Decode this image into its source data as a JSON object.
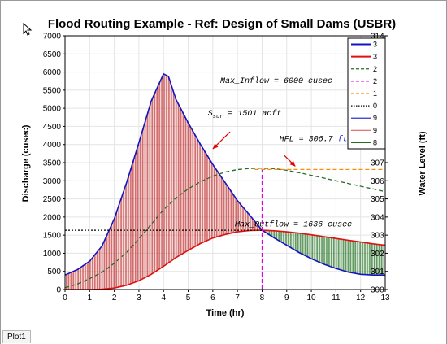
{
  "window": {
    "tab_label": "Plot1"
  },
  "chart_data": {
    "type": "line",
    "title": "Flood Routing Example - Ref: Design of Small Dams (USBR)",
    "xlabel": "Time (hr)",
    "ylabel": "Discharge (cusec)",
    "y2label": "Water Level (ft)",
    "xlim": [
      0,
      13
    ],
    "ylim": [
      0,
      7000
    ],
    "y2lim": [
      300,
      314
    ],
    "xticks": [
      0,
      1,
      2,
      3,
      4,
      5,
      6,
      7,
      8,
      9,
      10,
      11,
      12,
      13
    ],
    "yticks": [
      0,
      500,
      1000,
      1500,
      2000,
      2500,
      3000,
      3500,
      4000,
      4500,
      5000,
      5500,
      6000,
      6500,
      7000
    ],
    "y2ticks_shown": [
      "300",
      "301",
      "302",
      "303",
      "304",
      "305",
      "306",
      "307",
      "314"
    ],
    "grid": true,
    "series": [
      {
        "role": "inflow",
        "color": "#1515c0",
        "x": [
          0,
          0.5,
          1,
          1.5,
          2,
          2.5,
          3,
          3.5,
          4,
          4.2,
          4.5,
          5,
          5.5,
          6,
          6.5,
          7,
          7.5,
          8,
          8.5,
          9,
          9.5,
          10,
          10.5,
          11,
          11.5,
          12,
          12.5,
          13
        ],
        "y": [
          400,
          550,
          780,
          1200,
          1950,
          2950,
          4050,
          5200,
          5950,
          5880,
          5250,
          4600,
          4000,
          3450,
          2950,
          2450,
          2050,
          1636,
          1420,
          1220,
          1020,
          850,
          700,
          580,
          480,
          420,
          400,
          400
        ]
      },
      {
        "role": "outflow",
        "color": "#e01010",
        "x": [
          0,
          0.5,
          1,
          1.5,
          2,
          2.5,
          3,
          3.5,
          4,
          4.5,
          5,
          5.5,
          6,
          6.5,
          7,
          7.5,
          8,
          8.5,
          9,
          9.5,
          10,
          10.5,
          11,
          11.5,
          12,
          12.5,
          13
        ],
        "y": [
          0,
          0,
          0,
          10,
          40,
          120,
          240,
          420,
          640,
          880,
          1080,
          1270,
          1420,
          1520,
          1590,
          1628,
          1636,
          1620,
          1590,
          1555,
          1510,
          1460,
          1410,
          1360,
          1310,
          1260,
          1220
        ]
      },
      {
        "role": "water level",
        "axis": "y2",
        "color": "#2a6a2a",
        "dash": "dashed",
        "x": [
          0,
          0.5,
          1,
          1.5,
          2,
          2.5,
          3,
          3.5,
          4,
          4.5,
          5,
          5.5,
          6,
          6.5,
          7,
          7.5,
          8,
          8.5,
          9,
          9.5,
          10,
          10.5,
          11,
          11.5,
          12,
          12.5,
          13
        ],
        "y": [
          300.1,
          300.3,
          300.6,
          300.95,
          301.45,
          302.05,
          302.8,
          303.6,
          304.4,
          305.05,
          305.55,
          305.95,
          306.25,
          306.48,
          306.62,
          306.68,
          306.7,
          306.67,
          306.58,
          306.45,
          306.3,
          306.15,
          306.0,
          305.85,
          305.7,
          305.55,
          305.4
        ]
      },
      {
        "role": "peak outflow time marker",
        "color": "#e000e0",
        "dash": "dashed",
        "x": [
          8,
          8
        ],
        "y": [
          0,
          3312
        ]
      },
      {
        "role": "HFL level",
        "color": "#ff8c00",
        "dash": "dashed",
        "x": [
          7.7,
          13
        ],
        "y": [
          3312,
          3312
        ]
      },
      {
        "role": "max outflow level",
        "color": "#000000",
        "dash": "dotted",
        "x": [
          0,
          8
        ],
        "y": [
          1636,
          1636
        ]
      }
    ],
    "fills": [
      {
        "between": [
          "inflow",
          "outflow"
        ],
        "x_range": [
          0,
          8
        ],
        "color": "#c03030",
        "style": "vertical hatch"
      },
      {
        "between": [
          "outflow",
          "inflow"
        ],
        "x_range": [
          8,
          13
        ],
        "color": "#207020",
        "style": "vertical hatch"
      }
    ],
    "annotations": [
      {
        "text": "Max_Inflow = 6000 cusec",
        "x": 6.3,
        "y": 5700
      },
      {
        "text_main": "S",
        "text_sub": "sur",
        "text_rest": " = 1501 acft",
        "x": 5.8,
        "y": 4800
      },
      {
        "text": "HFL = 306.7 ft",
        "x": 8.7,
        "y": 4100
      },
      {
        "text": "Max_Outflow = 1636 cusec",
        "x": 6.9,
        "y": 1740
      }
    ],
    "legend": {
      "placement": "top-right",
      "entries": [
        {
          "label": "3",
          "color": "#1515c0",
          "style": "solid-thick"
        },
        {
          "label": "3",
          "color": "#e01010",
          "style": "solid-thick"
        },
        {
          "label": "2",
          "color": "#2a6a2a",
          "style": "dashed"
        },
        {
          "label": "2",
          "color": "#e000e0",
          "style": "dashed"
        },
        {
          "label": "1",
          "color": "#ff8c00",
          "style": "dashed"
        },
        {
          "label": "0",
          "color": "#000000",
          "style": "dotted"
        },
        {
          "label": "9",
          "color": "#3030d0",
          "style": "solid"
        },
        {
          "label": "9",
          "color": "#e06060",
          "style": "solid"
        },
        {
          "label": "8",
          "color": "#207020",
          "style": "solid"
        }
      ]
    }
  }
}
